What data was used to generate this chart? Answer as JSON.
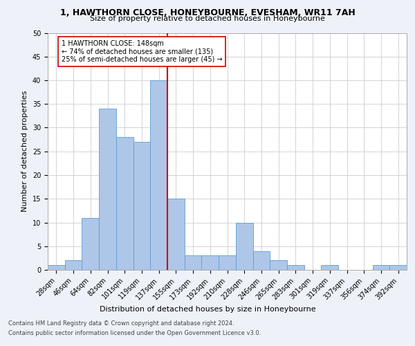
{
  "title1": "1, HAWTHORN CLOSE, HONEYBOURNE, EVESHAM, WR11 7AH",
  "title2": "Size of property relative to detached houses in Honeybourne",
  "xlabel": "Distribution of detached houses by size in Honeybourne",
  "ylabel": "Number of detached properties",
  "bin_labels": [
    "28sqm",
    "46sqm",
    "64sqm",
    "82sqm",
    "101sqm",
    "119sqm",
    "137sqm",
    "155sqm",
    "173sqm",
    "192sqm",
    "210sqm",
    "228sqm",
    "246sqm",
    "265sqm",
    "283sqm",
    "301sqm",
    "319sqm",
    "337sqm",
    "356sqm",
    "374sqm",
    "392sqm"
  ],
  "bar_heights": [
    1,
    2,
    11,
    34,
    28,
    27,
    40,
    15,
    3,
    3,
    3,
    10,
    4,
    2,
    1,
    0,
    1,
    0,
    0,
    1,
    1
  ],
  "bar_color": "#aec6e8",
  "bar_edge_color": "#5a9fd4",
  "vline_x": 6.5,
  "vline_color": "#cc0000",
  "annotation_text": "1 HAWTHORN CLOSE: 148sqm\n← 74% of detached houses are smaller (135)\n25% of semi-detached houses are larger (45) →",
  "annotation_box_color": "#ffffff",
  "annotation_box_edge_color": "#cc0000",
  "footer1": "Contains HM Land Registry data © Crown copyright and database right 2024.",
  "footer2": "Contains public sector information licensed under the Open Government Licence v3.0.",
  "bg_color": "#eef2f8",
  "plot_bg_color": "#ffffff",
  "grid_color": "#cccccc",
  "ylim": [
    0,
    50
  ],
  "yticks": [
    0,
    5,
    10,
    15,
    20,
    25,
    30,
    35,
    40,
    45,
    50
  ],
  "title1_fontsize": 9,
  "title2_fontsize": 8,
  "ylabel_fontsize": 8,
  "xlabel_fontsize": 8,
  "tick_fontsize": 7,
  "annotation_fontsize": 7,
  "footer_fontsize": 6
}
